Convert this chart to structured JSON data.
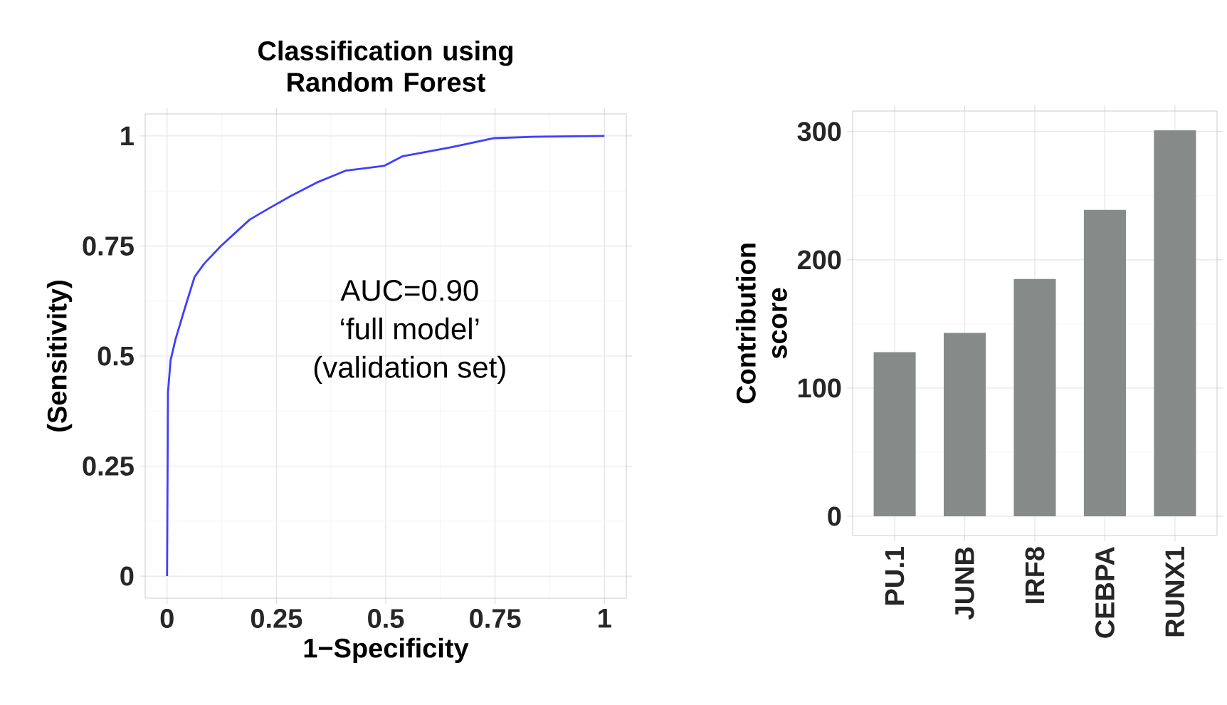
{
  "chart_data": [
    {
      "type": "line",
      "title": "Classification using Random Forest",
      "xlabel": "1−Specificity",
      "ylabel": "(Sensitivity)",
      "annotations": [
        "AUC=0.90",
        "‘full model’",
        "(validation set)"
      ],
      "series": [
        {
          "color": "#3f3fff",
          "x": [
            0,
            0.002,
            0.008,
            0.019,
            0.041,
            0.063,
            0.085,
            0.123,
            0.156,
            0.189,
            0.232,
            0.282,
            0.342,
            0.408,
            0.496,
            0.539,
            0.649,
            0.748,
            0.836,
            1
          ],
          "values": [
            0,
            0.417,
            0.49,
            0.537,
            0.61,
            0.68,
            0.71,
            0.75,
            0.78,
            0.81,
            0.835,
            0.863,
            0.894,
            0.921,
            0.932,
            0.954,
            0.974,
            0.995,
            0.998,
            1
          ]
        }
      ],
      "xlim": [
        -0.05,
        1.05
      ],
      "ylim": [
        -0.05,
        1.05
      ],
      "xticks": [
        0,
        0.25,
        0.5,
        0.75,
        1
      ],
      "yticks": [
        0,
        0.25,
        0.5,
        0.75,
        1
      ],
      "grid": true
    },
    {
      "type": "bar",
      "ylabel": "Contribution score",
      "categories": [
        "PU.1",
        "JUNB",
        "IRF8",
        "CEBPA",
        "RUNX1"
      ],
      "values": [
        128,
        143,
        185,
        239,
        301
      ],
      "color": "#868b8a",
      "ylim": [
        -15,
        316
      ],
      "yticks": [
        0,
        100,
        200,
        300
      ],
      "grid": true
    }
  ]
}
